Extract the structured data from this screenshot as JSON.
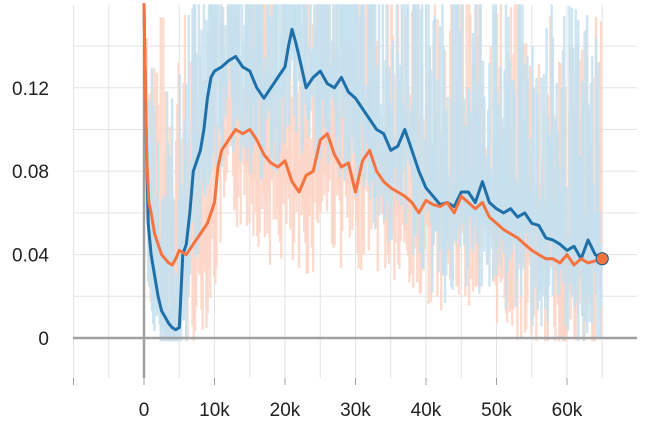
{
  "chart_data": {
    "type": "line",
    "title": "",
    "xlabel": "",
    "ylabel": "",
    "xlim": [
      -10000,
      70000
    ],
    "ylim": [
      -0.025,
      0.16
    ],
    "x_ticks": [
      {
        "value": 0,
        "label": "0"
      },
      {
        "value": 10000,
        "label": "10k"
      },
      {
        "value": 20000,
        "label": "20k"
      },
      {
        "value": 30000,
        "label": "30k"
      },
      {
        "value": 40000,
        "label": "40k"
      },
      {
        "value": 50000,
        "label": "50k"
      },
      {
        "value": 60000,
        "label": "60k"
      }
    ],
    "y_ticks": [
      {
        "value": 0,
        "label": "0"
      },
      {
        "value": 0.04,
        "label": "0.04"
      },
      {
        "value": 0.08,
        "label": "0.08"
      },
      {
        "value": 0.12,
        "label": "0.12"
      }
    ],
    "grid": true,
    "legend": "none",
    "series": [
      {
        "color": "#1f6fa8",
        "raw_color": "#c6e0ef",
        "x": [
          0,
          300,
          600,
          1000,
          1500,
          2000,
          2500,
          3000,
          3500,
          4000,
          4500,
          5000,
          5500,
          6000,
          6500,
          7000,
          7500,
          8000,
          8500,
          9000,
          9500,
          10000,
          11000,
          12000,
          13000,
          14000,
          15000,
          16000,
          17000,
          18000,
          19000,
          20000,
          20500,
          21000,
          21500,
          22000,
          23000,
          24000,
          25000,
          26000,
          27000,
          28000,
          29000,
          30000,
          31000,
          32000,
          33000,
          34000,
          35000,
          36000,
          37000,
          38000,
          39000,
          40000,
          41000,
          42000,
          43000,
          44000,
          45000,
          46000,
          47000,
          48000,
          49000,
          50000,
          51000,
          52000,
          53000,
          54000,
          55000,
          56000,
          57000,
          58000,
          59000,
          60000,
          61000,
          62000,
          63000,
          64000,
          65000
        ],
        "y": [
          0.16,
          0.1,
          0.055,
          0.04,
          0.03,
          0.02,
          0.013,
          0.01,
          0.007,
          0.005,
          0.004,
          0.005,
          0.04,
          0.045,
          0.06,
          0.08,
          0.085,
          0.09,
          0.1,
          0.115,
          0.125,
          0.128,
          0.13,
          0.133,
          0.135,
          0.13,
          0.128,
          0.12,
          0.115,
          0.12,
          0.125,
          0.13,
          0.14,
          0.148,
          0.142,
          0.135,
          0.12,
          0.125,
          0.128,
          0.122,
          0.12,
          0.125,
          0.118,
          0.115,
          0.11,
          0.105,
          0.1,
          0.098,
          0.09,
          0.092,
          0.1,
          0.09,
          0.08,
          0.072,
          0.068,
          0.064,
          0.065,
          0.063,
          0.07,
          0.07,
          0.065,
          0.075,
          0.065,
          0.062,
          0.06,
          0.062,
          0.058,
          0.06,
          0.055,
          0.054,
          0.048,
          0.047,
          0.045,
          0.042,
          0.044,
          0.038,
          0.047,
          0.04,
          0.038
        ]
      },
      {
        "color": "#f4733f",
        "raw_color": "#fcd5c7",
        "x": [
          0,
          200,
          400,
          700,
          1000,
          1500,
          2000,
          2500,
          3000,
          3500,
          4000,
          4500,
          5000,
          6000,
          7000,
          8000,
          9000,
          10000,
          10500,
          11000,
          12000,
          13000,
          14000,
          15000,
          16000,
          17000,
          18000,
          19000,
          20000,
          21000,
          22000,
          23000,
          24000,
          25000,
          26000,
          27000,
          28000,
          29000,
          30000,
          31000,
          32000,
          33000,
          34000,
          35000,
          36000,
          37000,
          38000,
          39000,
          40000,
          41000,
          42000,
          43000,
          44000,
          45000,
          46000,
          47000,
          48000,
          49000,
          50000,
          51000,
          52000,
          53000,
          54000,
          55000,
          56000,
          57000,
          58000,
          59000,
          60000,
          61000,
          62000,
          63000,
          64000,
          65000
        ],
        "y": [
          0.16,
          0.12,
          0.085,
          0.065,
          0.06,
          0.05,
          0.045,
          0.04,
          0.038,
          0.036,
          0.035,
          0.038,
          0.042,
          0.04,
          0.045,
          0.05,
          0.055,
          0.065,
          0.082,
          0.09,
          0.095,
          0.1,
          0.098,
          0.1,
          0.095,
          0.088,
          0.084,
          0.082,
          0.085,
          0.075,
          0.07,
          0.078,
          0.08,
          0.095,
          0.098,
          0.088,
          0.082,
          0.084,
          0.07,
          0.085,
          0.09,
          0.08,
          0.075,
          0.072,
          0.07,
          0.068,
          0.065,
          0.06,
          0.066,
          0.064,
          0.063,
          0.065,
          0.06,
          0.068,
          0.065,
          0.062,
          0.065,
          0.058,
          0.055,
          0.052,
          0.05,
          0.048,
          0.045,
          0.042,
          0.04,
          0.038,
          0.038,
          0.036,
          0.04,
          0.035,
          0.038,
          0.036,
          0.037,
          0.038
        ]
      }
    ]
  }
}
